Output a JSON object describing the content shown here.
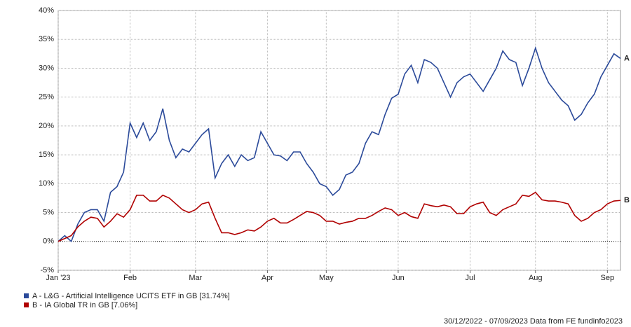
{
  "chart_data": {
    "type": "line",
    "categories": [
      "Jan '23",
      null,
      null,
      null,
      null,
      null,
      null,
      null,
      null,
      null,
      null,
      "Feb",
      null,
      null,
      null,
      null,
      null,
      null,
      null,
      null,
      null,
      "Mar",
      null,
      null,
      null,
      null,
      null,
      null,
      null,
      null,
      null,
      null,
      "Apr",
      null,
      null,
      null,
      null,
      null,
      null,
      null,
      null,
      "May",
      null,
      null,
      null,
      null,
      null,
      null,
      null,
      null,
      null,
      null,
      "Jun",
      null,
      null,
      null,
      null,
      null,
      null,
      null,
      null,
      null,
      null,
      "Jul",
      null,
      null,
      null,
      null,
      null,
      null,
      null,
      null,
      null,
      "Aug",
      null,
      null,
      null,
      null,
      null,
      null,
      null,
      null,
      null,
      null,
      "Sep",
      null,
      null
    ],
    "series": [
      {
        "name": "A - L&G - Artificial Intelligence UCITS ETF in GB [31.74%]",
        "end_label": "A",
        "color": "#2b4a9a",
        "values": [
          0,
          1,
          0,
          3,
          5,
          5.5,
          5.5,
          3.5,
          8.5,
          9.5,
          12,
          20.5,
          18,
          20.5,
          17.5,
          19,
          23,
          17.5,
          14.5,
          16,
          15.5,
          17,
          18.5,
          19.5,
          11,
          13.5,
          15,
          13,
          15,
          14,
          14.5,
          19,
          17,
          15,
          14.8,
          14,
          15.5,
          15.5,
          13.5,
          12,
          10,
          9.5,
          8,
          9,
          11.5,
          12,
          13.5,
          17,
          19,
          18.5,
          22,
          24.8,
          25.5,
          29,
          30.5,
          27.5,
          31.5,
          31,
          30,
          27.5,
          25,
          27.5,
          28.5,
          29,
          27.5,
          26,
          28,
          30,
          33,
          31.5,
          31,
          27,
          30,
          33.5,
          30,
          27.5,
          26,
          24.5,
          23.5,
          21,
          22,
          24,
          25.5,
          28.5,
          30.5,
          32.5,
          31.7
        ]
      },
      {
        "name": "B - IA Global TR in GB [7.06%]",
        "end_label": "B",
        "color": "#b00000",
        "values": [
          0,
          0.5,
          1,
          2.5,
          3.5,
          4.2,
          4,
          2.5,
          3.5,
          4.8,
          4.2,
          5.5,
          8,
          8,
          7,
          7,
          8,
          7.5,
          6.5,
          5.5,
          5,
          5.5,
          6.5,
          6.8,
          4,
          1.5,
          1.5,
          1.2,
          1.5,
          2,
          1.8,
          2.5,
          3.5,
          4,
          3.2,
          3.2,
          3.8,
          4.5,
          5.2,
          5,
          4.5,
          3.5,
          3.5,
          3,
          3.3,
          3.5,
          4,
          4,
          4.5,
          5.2,
          5.8,
          5.5,
          4.5,
          5,
          4.3,
          4,
          6.5,
          6.2,
          6,
          6.3,
          6,
          4.8,
          4.8,
          6,
          6.5,
          6.8,
          5,
          4.5,
          5.5,
          6,
          6.5,
          8,
          7.8,
          8.5,
          7.2,
          7,
          7,
          6.8,
          6.5,
          4.5,
          3.5,
          4,
          5,
          5.5,
          6.5,
          7,
          7.1
        ]
      }
    ],
    "ylim": [
      -5,
      40
    ],
    "yticks": [
      {
        "value": -5,
        "label": "-5%"
      },
      {
        "value": 0,
        "label": "0%"
      },
      {
        "value": 5,
        "label": "5%"
      },
      {
        "value": 10,
        "label": "10%"
      },
      {
        "value": 15,
        "label": "15%"
      },
      {
        "value": 20,
        "label": "20%"
      },
      {
        "value": 25,
        "label": "25%"
      },
      {
        "value": 30,
        "label": "30%"
      },
      {
        "value": 35,
        "label": "35%"
      },
      {
        "value": 40,
        "label": "40%"
      }
    ],
    "grid": true,
    "footer": "30/12/2022 - 07/09/2023 Data from FE fundinfo2023"
  }
}
